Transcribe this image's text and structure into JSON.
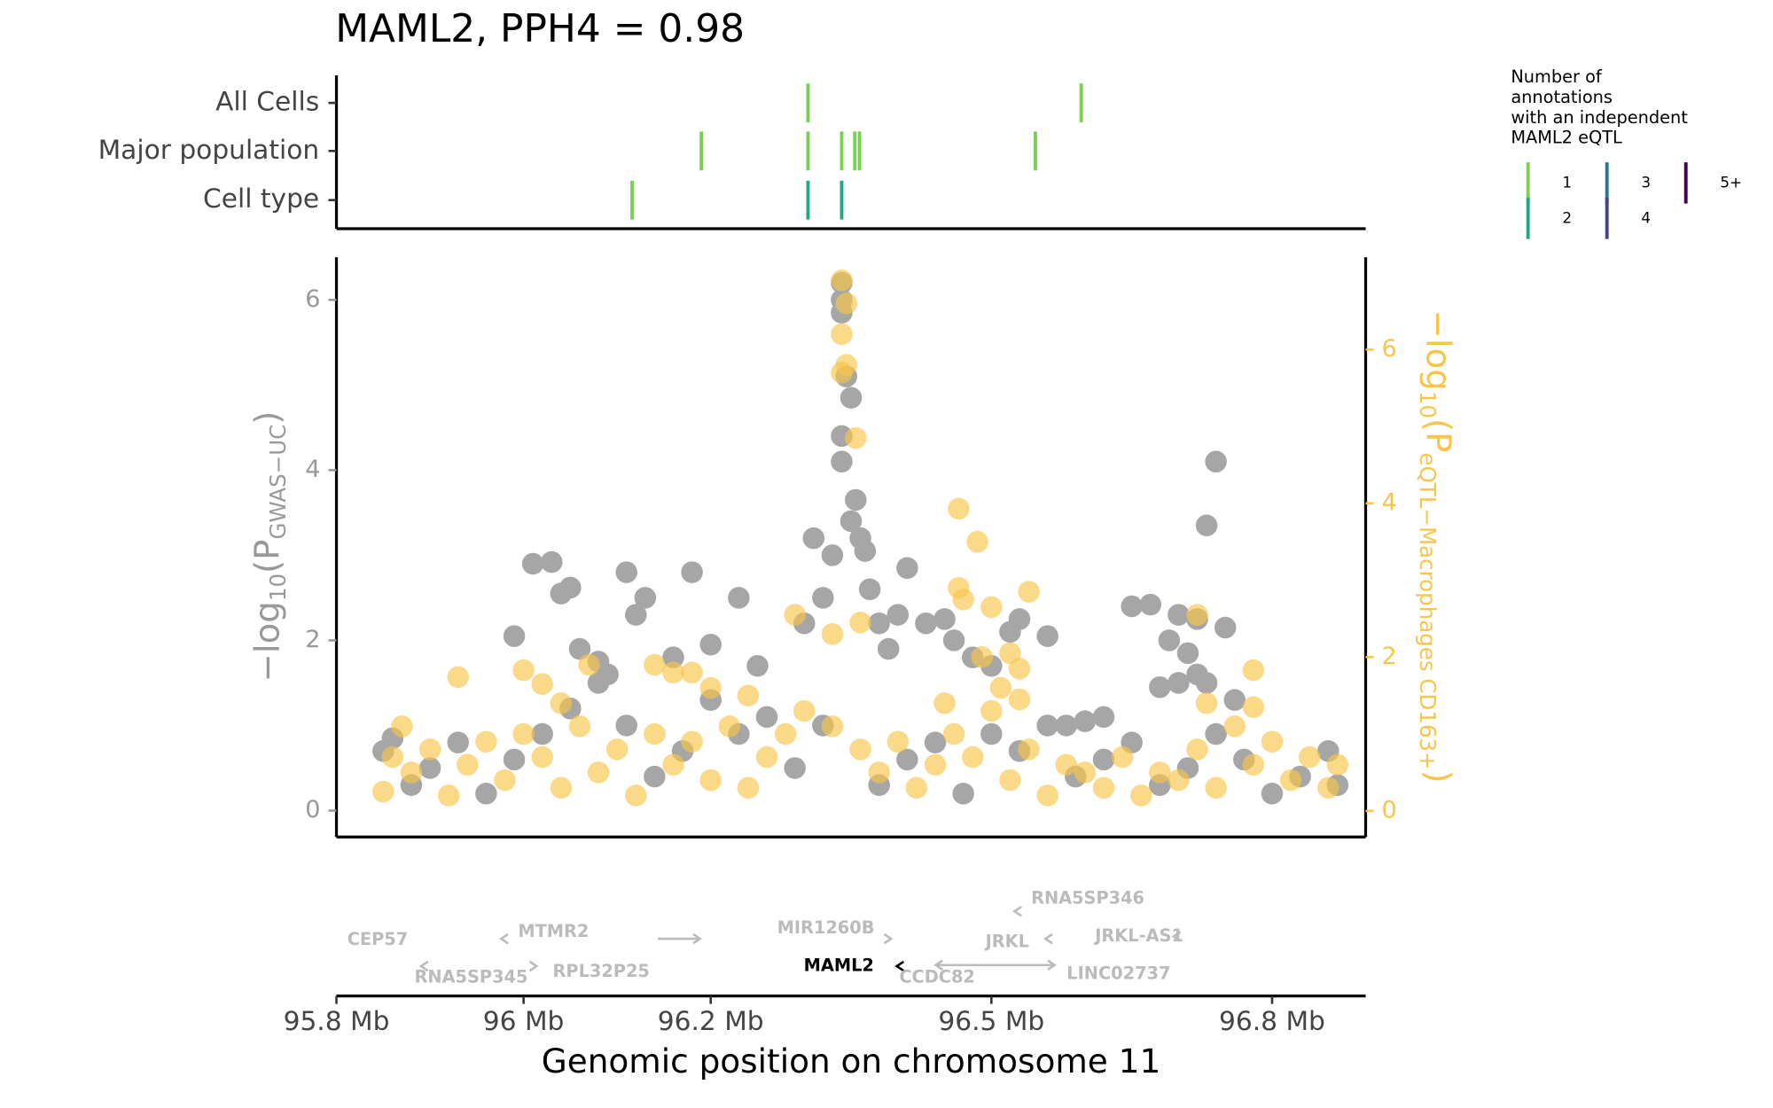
{
  "chart_data": [
    {
      "type": "annotation-track",
      "title": "MAML2, PPH4 = 0.98",
      "xlim": [
        95.8,
        96.9
      ],
      "series": [
        {
          "name": "All Cells",
          "x": [
            96.304,
            96.596
          ],
          "counts": [
            1,
            1
          ]
        },
        {
          "name": "Major population",
          "x": [
            96.19,
            96.304,
            96.34,
            96.354,
            96.359,
            96.547
          ],
          "counts": [
            1,
            1,
            1,
            1,
            1,
            1
          ]
        },
        {
          "name": "Cell type",
          "x": [
            96.116,
            96.304,
            96.34
          ],
          "counts": [
            1,
            2,
            2
          ]
        }
      ],
      "legend": {
        "title": [
          "Number of",
          "annotations",
          "with an independent",
          "MAML2 eQTL"
        ],
        "labels": [
          "1",
          "2",
          "3",
          "4",
          "5+"
        ],
        "colors": [
          "#7ad151",
          "#22a884",
          "#2a788e",
          "#414487",
          "#440154"
        ]
      }
    },
    {
      "type": "scatter",
      "xlabel": "Genomic position on chromosome 11",
      "ylabel": [
        "−log",
        "10",
        "(P",
        "GWAS−UC",
        ")"
      ],
      "y2label": [
        "−log",
        "10",
        "(P",
        "eQTL−Macrophages CD163+",
        ")"
      ],
      "xlim": [
        95.8,
        96.9
      ],
      "xticks": [
        {
          "value": 95.8,
          "label": "95.8 Mb"
        },
        {
          "value": 96.0,
          "label": "96 Mb"
        },
        {
          "value": 96.2,
          "label": "96.2 Mb"
        },
        {
          "value": 96.5,
          "label": "96.5 Mb"
        },
        {
          "value": 96.8,
          "label": "96.8 Mb"
        }
      ],
      "ylim": [
        -0.31,
        6.5
      ],
      "yticks": [
        0,
        2,
        4,
        6
      ],
      "y2lim": [
        -0.34,
        7.2
      ],
      "y2ticks": [
        0,
        2,
        4,
        6
      ],
      "series": [
        {
          "name": "GWAS-UC",
          "color": "#a6a6a6",
          "opacity": 1,
          "x": [
            95.85,
            95.86,
            95.88,
            95.9,
            95.93,
            95.96,
            95.99,
            96.02,
            96.05,
            96.08,
            96.11,
            96.14,
            96.17,
            96.2,
            96.23,
            96.26,
            96.29,
            96.32,
            96.38,
            96.41,
            96.44,
            96.47,
            96.5,
            96.53,
            96.56,
            96.59,
            96.62,
            96.65,
            96.68,
            96.71,
            96.74,
            96.77,
            96.8,
            96.83,
            96.86,
            96.87,
            96.01,
            96.03,
            96.04,
            96.05,
            96.11,
            96.13,
            96.12,
            96.18,
            96.23,
            95.99,
            96.06,
            96.08,
            96.09,
            96.16,
            96.2,
            96.25,
            96.31,
            96.3,
            96.32,
            96.33,
            96.34,
            96.34,
            96.34,
            96.345,
            96.35,
            96.34,
            96.34,
            96.355,
            96.35,
            96.36,
            96.365,
            96.37,
            96.38,
            96.39,
            96.41,
            96.4,
            96.43,
            96.45,
            96.46,
            96.48,
            96.5,
            96.52,
            96.53,
            96.56,
            96.58,
            96.65,
            96.67,
            96.7,
            96.72,
            96.75,
            96.69,
            96.71,
            96.7,
            96.68,
            96.73,
            96.76,
            96.74,
            96.73,
            96.72,
            96.62,
            96.6
          ],
          "values": [
            0.7,
            0.85,
            0.3,
            0.5,
            0.8,
            0.2,
            0.6,
            0.9,
            1.2,
            1.5,
            1.0,
            0.4,
            0.7,
            1.3,
            0.9,
            1.1,
            0.5,
            1.0,
            0.3,
            0.6,
            0.8,
            0.2,
            0.9,
            0.7,
            1.0,
            0.4,
            0.6,
            0.8,
            0.3,
            0.5,
            0.9,
            0.6,
            0.2,
            0.4,
            0.7,
            0.3,
            2.9,
            2.92,
            2.55,
            2.62,
            2.8,
            2.5,
            2.3,
            2.8,
            2.5,
            2.05,
            1.9,
            1.75,
            1.6,
            1.8,
            1.95,
            1.7,
            3.2,
            2.2,
            2.5,
            3.0,
            6.2,
            6.0,
            5.85,
            5.1,
            4.85,
            4.4,
            4.1,
            3.65,
            3.4,
            3.2,
            3.05,
            2.6,
            2.2,
            1.9,
            2.85,
            2.3,
            2.2,
            2.25,
            2.0,
            1.8,
            1.7,
            2.1,
            2.25,
            2.05,
            1.0,
            2.4,
            2.42,
            2.3,
            2.25,
            2.15,
            2.0,
            1.85,
            1.5,
            1.45,
            1.5,
            1.3,
            4.1,
            3.35,
            1.6,
            1.1,
            1.05
          ]
        },
        {
          "name": "eQTL-Macrophages CD163+",
          "color": "#f8c54a",
          "opacity": 0.65,
          "axis": "y2",
          "x": [
            95.85,
            95.86,
            95.88,
            95.9,
            95.92,
            95.94,
            95.96,
            95.98,
            96.0,
            96.02,
            96.04,
            96.06,
            96.08,
            96.1,
            96.12,
            96.14,
            96.16,
            96.18,
            96.2,
            96.22,
            96.24,
            96.26,
            96.28,
            96.3,
            96.33,
            96.36,
            96.38,
            96.4,
            96.42,
            96.44,
            96.46,
            96.48,
            96.5,
            96.52,
            96.54,
            96.56,
            96.58,
            96.6,
            96.62,
            96.64,
            96.66,
            96.68,
            96.7,
            96.72,
            96.74,
            96.76,
            96.78,
            96.8,
            96.82,
            96.84,
            96.86,
            96.87,
            96.34,
            96.345,
            96.34,
            96.345,
            96.34,
            96.355,
            96.465,
            96.485,
            96.465,
            96.47,
            96.5,
            96.54,
            96.52,
            96.53,
            96.51,
            96.53,
            96.72,
            96.78,
            96.78,
            96.73,
            95.93,
            96.0,
            96.02,
            96.07,
            96.14,
            96.16,
            96.18,
            96.2,
            96.24,
            96.29,
            96.36,
            96.04,
            95.87,
            96.45,
            96.49,
            96.33
          ],
          "values": [
            0.25,
            0.7,
            0.5,
            0.8,
            0.2,
            0.6,
            0.9,
            0.4,
            1.0,
            0.7,
            0.3,
            1.1,
            0.5,
            0.8,
            0.2,
            1.0,
            0.6,
            0.9,
            0.4,
            1.1,
            0.3,
            0.7,
            1.0,
            1.3,
            1.1,
            0.8,
            0.5,
            0.9,
            0.3,
            0.6,
            1.0,
            0.7,
            1.3,
            0.4,
            0.8,
            0.2,
            0.6,
            0.5,
            0.3,
            0.7,
            0.2,
            0.5,
            0.4,
            0.8,
            0.3,
            1.1,
            0.6,
            0.9,
            0.4,
            0.7,
            0.3,
            0.6,
            6.9,
            6.6,
            6.2,
            5.8,
            5.7,
            4.85,
            3.93,
            3.5,
            2.9,
            2.75,
            2.65,
            2.85,
            2.05,
            1.85,
            1.6,
            1.45,
            2.55,
            1.83,
            1.35,
            1.4,
            1.74,
            1.83,
            1.65,
            1.9,
            1.9,
            1.8,
            1.8,
            1.6,
            1.5,
            2.55,
            2.45,
            1.4,
            1.1,
            1.4,
            2.0,
            2.3
          ]
        }
      ],
      "genes": [
        {
          "name": "CEP57",
          "x": 95.844
        },
        {
          "name": "MTMR2",
          "x": 96.032
        },
        {
          "name": "RNA5SP345",
          "x": 95.944
        },
        {
          "name": "RPL32P25",
          "x": 96.083
        },
        {
          "name": "MIR1260B",
          "x": 96.323
        },
        {
          "name": "MAML2",
          "x": 96.337,
          "highlight": true
        },
        {
          "name": "CCDC82",
          "x": 96.442
        },
        {
          "name": "JRKL",
          "x": 96.517
        },
        {
          "name": "RNA5SP346",
          "x": 96.603
        },
        {
          "name": "JRKL-AS1",
          "x": 96.658
        },
        {
          "name": "LINC02737",
          "x": 96.636
        }
      ]
    }
  ]
}
